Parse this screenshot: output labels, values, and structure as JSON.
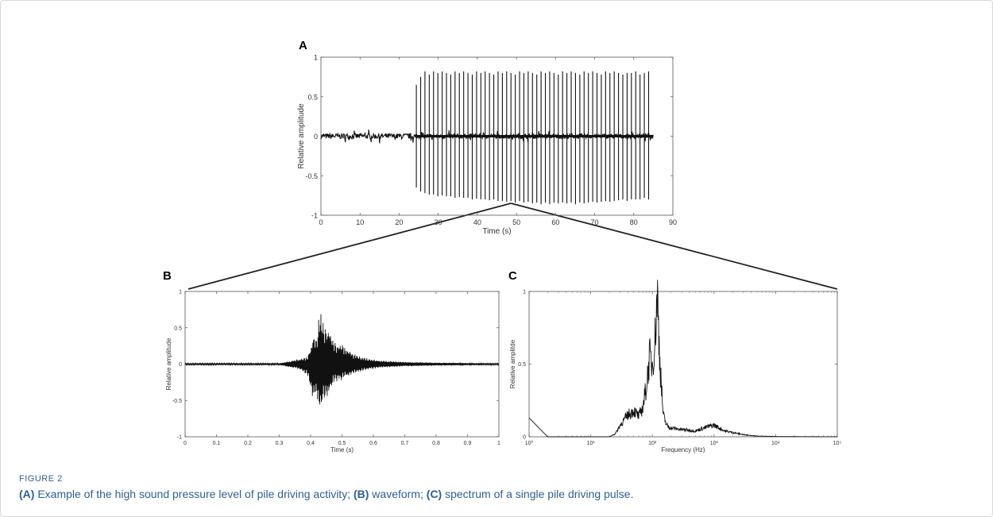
{
  "figure": {
    "label": "FIGURE 2",
    "caption": [
      {
        "bold": true,
        "text": "(A)"
      },
      {
        "bold": false,
        "text": " Example of the high sound pressure level of pile driving activity; "
      },
      {
        "bold": true,
        "text": "(B)"
      },
      {
        "bold": false,
        "text": " waveform; "
      },
      {
        "bold": true,
        "text": "(C)"
      },
      {
        "bold": false,
        "text": " spectrum of a single pile driving pulse."
      }
    ]
  },
  "chart_data": [
    {
      "panel": "A",
      "type": "line",
      "xlabel": "Time (s)",
      "ylabel": "Relative amplitude",
      "xlim": [
        0,
        90
      ],
      "ylim": [
        -1,
        1
      ],
      "xticks": [
        0,
        10,
        20,
        30,
        40,
        50,
        60,
        70,
        80,
        90
      ],
      "xtick_labels": [
        "0",
        "10",
        "20",
        "30",
        "40",
        "50",
        "60",
        "70",
        "80",
        "90"
      ],
      "yticks": [
        -1,
        -0.5,
        0,
        0.5,
        1
      ],
      "ytick_labels": [
        "-1",
        "-0.5",
        "0",
        "0.5",
        "1"
      ],
      "noise_level": 0.03,
      "noise_end": 85,
      "pulse_times": [
        24.4,
        25.5,
        26.6,
        27.7,
        28.8,
        29.9,
        31.0,
        32.1,
        33.2,
        34.3,
        35.4,
        36.5,
        37.6,
        38.7,
        39.8,
        40.9,
        42.0,
        43.1,
        44.2,
        45.3,
        46.4,
        47.5,
        48.6,
        49.7,
        50.8,
        51.9,
        53.0,
        54.1,
        55.2,
        56.3,
        57.4,
        58.5,
        59.6,
        60.7,
        61.8,
        62.9,
        64.0,
        65.1,
        66.2,
        67.3,
        68.4,
        69.5,
        70.6,
        71.7,
        72.8,
        73.9,
        75.0,
        76.1,
        77.2,
        78.3,
        79.4,
        80.5,
        81.6,
        82.7,
        83.8
      ],
      "pulse_max": [
        0.65,
        0.75,
        0.82,
        0.78,
        0.82,
        0.8,
        0.82,
        0.8,
        0.78,
        0.82,
        0.8,
        0.82,
        0.8,
        0.78,
        0.82,
        0.8,
        0.82,
        0.8,
        0.78,
        0.82,
        0.8,
        0.82,
        0.8,
        0.78,
        0.82,
        0.8,
        0.82,
        0.8,
        0.78,
        0.82,
        0.8,
        0.82,
        0.8,
        0.78,
        0.82,
        0.8,
        0.82,
        0.8,
        0.78,
        0.82,
        0.8,
        0.82,
        0.8,
        0.78,
        0.82,
        0.8,
        0.82,
        0.8,
        0.78,
        0.8,
        0.8,
        0.82,
        0.78,
        0.8,
        0.82
      ],
      "pulse_min": [
        -0.65,
        -0.7,
        -0.72,
        -0.74,
        -0.74,
        -0.76,
        -0.75,
        -0.76,
        -0.76,
        -0.78,
        -0.77,
        -0.78,
        -0.78,
        -0.8,
        -0.79,
        -0.8,
        -0.8,
        -0.81,
        -0.8,
        -0.82,
        -0.82,
        -0.83,
        -0.82,
        -0.84,
        -0.82,
        -0.84,
        -0.83,
        -0.85,
        -0.84,
        -0.86,
        -0.84,
        -0.86,
        -0.84,
        -0.85,
        -0.84,
        -0.85,
        -0.84,
        -0.86,
        -0.84,
        -0.85,
        -0.84,
        -0.83,
        -0.84,
        -0.83,
        -0.82,
        -0.83,
        -0.82,
        -0.81,
        -0.8,
        -0.82,
        -0.8,
        -0.8,
        -0.8,
        -0.78,
        -0.8
      ]
    },
    {
      "panel": "B",
      "type": "line",
      "xlabel": "Time (s)",
      "ylabel": "Relative amplitude",
      "xlim": [
        0,
        1
      ],
      "ylim": [
        -1,
        1
      ],
      "xticks": [
        0,
        0.1,
        0.2,
        0.3,
        0.4,
        0.5,
        0.6,
        0.7,
        0.8,
        0.9,
        1
      ],
      "xtick_labels": [
        "0",
        "0.1",
        "0.2",
        "0.3",
        "0.4",
        "0.5",
        "0.6",
        "0.7",
        "0.8",
        "0.9",
        "1"
      ],
      "yticks": [
        -1,
        -0.5,
        0,
        0.5,
        1
      ],
      "ytick_labels": [
        "-1",
        "-0.5",
        "0",
        "0.5",
        "1"
      ],
      "x": [
        0,
        0.1,
        0.2,
        0.3,
        0.33,
        0.36,
        0.39,
        0.4,
        0.41,
        0.42,
        0.43,
        0.44,
        0.45,
        0.46,
        0.47,
        0.48,
        0.5,
        0.52,
        0.55,
        0.58,
        0.62,
        0.66,
        0.7,
        0.8,
        0.9,
        1.0
      ],
      "y_envelope": [
        0.01,
        0.01,
        0.01,
        0.01,
        0.04,
        0.07,
        0.1,
        0.25,
        0.45,
        0.35,
        0.85,
        0.6,
        0.55,
        0.5,
        0.35,
        0.3,
        0.28,
        0.2,
        0.12,
        0.08,
        0.05,
        0.04,
        0.03,
        0.02,
        0.015,
        0.01
      ],
      "y_min_envelope": [
        -0.01,
        -0.01,
        -0.01,
        -0.01,
        -0.04,
        -0.07,
        -0.15,
        -0.4,
        -0.55,
        -0.45,
        -0.73,
        -0.58,
        -0.5,
        -0.42,
        -0.3,
        -0.25,
        -0.22,
        -0.18,
        -0.12,
        -0.08,
        -0.05,
        -0.04,
        -0.03,
        -0.02,
        -0.015,
        -0.01
      ]
    },
    {
      "panel": "C",
      "type": "line",
      "xlabel": "Frequency (Hz)",
      "ylabel": "Relative amplitde",
      "xscale": "log",
      "xlim": [
        1,
        100000
      ],
      "ylim": [
        0,
        1
      ],
      "xticks": [
        1,
        10,
        100,
        1000,
        10000,
        100000
      ],
      "xtick_labels": [
        "10⁰",
        "10¹",
        "10²",
        "10³",
        "10⁴",
        "10⁵"
      ],
      "yticks": [
        0,
        0.5,
        1
      ],
      "ytick_labels": [
        "0",
        "0.5",
        "1"
      ],
      "x": [
        1,
        2,
        20,
        25,
        30,
        40,
        50,
        55,
        60,
        70,
        80,
        90,
        100,
        110,
        120,
        130,
        140,
        150,
        170,
        200,
        300,
        500,
        800,
        1000,
        1500,
        2000,
        3000,
        5000,
        10000,
        100000
      ],
      "y": [
        0.13,
        0.0,
        0.0,
        0.02,
        0.08,
        0.15,
        0.18,
        0.16,
        0.14,
        0.2,
        0.35,
        0.55,
        0.5,
        0.65,
        1.0,
        0.6,
        0.35,
        0.15,
        0.08,
        0.06,
        0.05,
        0.04,
        0.07,
        0.08,
        0.04,
        0.03,
        0.015,
        0.005,
        0.002,
        0.0
      ]
    }
  ],
  "panel_letters": {
    "a": "A",
    "b": "B",
    "c": "C"
  }
}
